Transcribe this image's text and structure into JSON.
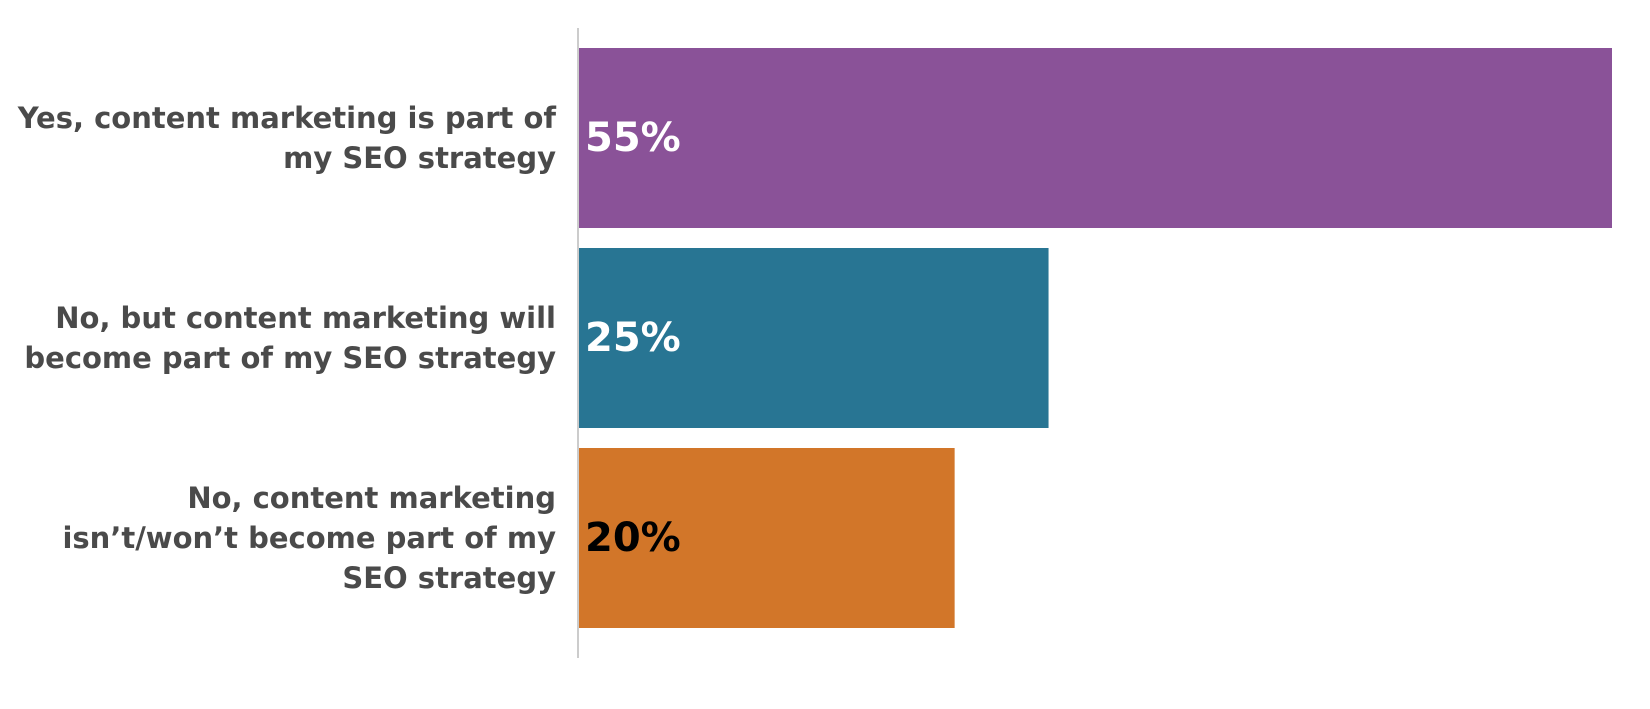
{
  "chart_data": {
    "type": "bar",
    "orientation": "horizontal",
    "categories": [
      [
        "Yes, content marketing is part of",
        "my SEO strategy"
      ],
      [
        "No, but content marketing will",
        "become part of my SEO strategy"
      ],
      [
        "No, content marketing",
        "isn’t/won’t become part of my",
        "SEO strategy"
      ]
    ],
    "values": [
      55,
      25,
      20
    ],
    "data_labels": [
      "55%",
      "25%",
      "20%"
    ],
    "colors": [
      "#8a5298",
      "#287593",
      "#d27629"
    ],
    "label_colors": [
      "#ffffff",
      "#ffffff",
      "#000000"
    ],
    "xlim": [
      0,
      55
    ],
    "grid": false,
    "legend": "none"
  }
}
